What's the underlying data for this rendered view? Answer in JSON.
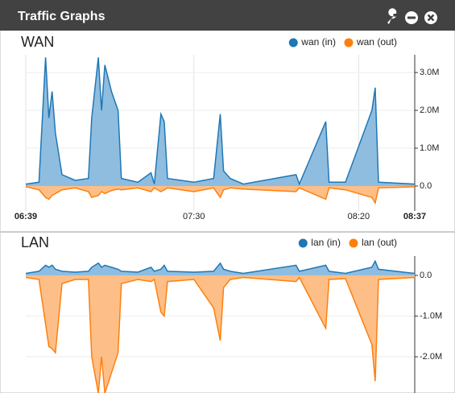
{
  "header": {
    "title": "Traffic Graphs"
  },
  "chart_data": [
    {
      "type": "area",
      "title": "WAN",
      "x": [
        "06:39",
        "06:43",
        "06:45",
        "06:46",
        "06:47",
        "06:48",
        "06:50",
        "06:54",
        "06:58",
        "06:59",
        "07:01",
        "07:02",
        "07:03",
        "07:05",
        "07:07",
        "07:08",
        "07:13",
        "07:17",
        "07:18",
        "07:20",
        "07:21",
        "07:22",
        "07:30",
        "07:36",
        "07:38",
        "07:39",
        "07:41",
        "07:45",
        "08:01",
        "08:02",
        "08:10",
        "08:11",
        "08:16",
        "08:24",
        "08:25",
        "08:26",
        "08:37"
      ],
      "series": [
        {
          "name": "wan (in)",
          "color": "#1f77b4",
          "fill": "#8fbde0",
          "values": [
            50000,
            100000,
            3400000,
            1800000,
            2500000,
            1400000,
            300000,
            150000,
            200000,
            1800000,
            3400000,
            2000000,
            3200000,
            2500000,
            2000000,
            200000,
            100000,
            350000,
            50000,
            1900000,
            1700000,
            200000,
            100000,
            200000,
            1900000,
            400000,
            200000,
            50000,
            300000,
            50000,
            1700000,
            100000,
            100000,
            2000000,
            2600000,
            100000,
            50000
          ]
        },
        {
          "name": "wan (out)",
          "color": "#ff7f0e",
          "fill": "#fdbf87",
          "values": [
            -20000,
            -100000,
            -300000,
            -350000,
            -250000,
            -200000,
            -100000,
            -50000,
            -150000,
            -300000,
            -250000,
            -150000,
            -200000,
            -120000,
            -80000,
            -100000,
            -50000,
            -150000,
            -50000,
            -150000,
            -100000,
            -50000,
            -150000,
            -50000,
            -300000,
            -100000,
            -50000,
            -80000,
            -150000,
            -50000,
            -350000,
            -50000,
            -100000,
            -300000,
            -450000,
            -50000,
            -20000
          ]
        }
      ],
      "xlim": [
        "06:39",
        "08:37"
      ],
      "xticks": [
        "06:39",
        "07:30",
        "08:20",
        "08:37"
      ],
      "ylim": [
        -660000,
        3470000
      ],
      "yticks": [
        {
          "value": 0,
          "label": "0.0"
        },
        {
          "value": 1000000,
          "label": "1.0M"
        },
        {
          "value": 2000000,
          "label": "2.0M"
        },
        {
          "value": 3000000,
          "label": "3.0M"
        }
      ],
      "grid": true,
      "legend": "top-right"
    },
    {
      "type": "area",
      "title": "LAN",
      "x": [
        "06:39",
        "06:43",
        "06:45",
        "06:46",
        "06:47",
        "06:48",
        "06:50",
        "06:54",
        "06:58",
        "06:59",
        "07:01",
        "07:02",
        "07:03",
        "07:05",
        "07:07",
        "07:08",
        "07:13",
        "07:17",
        "07:18",
        "07:20",
        "07:21",
        "07:22",
        "07:30",
        "07:36",
        "07:38",
        "07:39",
        "07:41",
        "07:45",
        "08:01",
        "08:02",
        "08:10",
        "08:11",
        "08:16",
        "08:24",
        "08:25",
        "08:26",
        "08:37"
      ],
      "series": [
        {
          "name": "lan (in)",
          "color": "#1f77b4",
          "fill": "#8fbde0",
          "values": [
            50000,
            100000,
            250000,
            200000,
            250000,
            150000,
            100000,
            80000,
            100000,
            200000,
            300000,
            200000,
            250000,
            200000,
            150000,
            100000,
            80000,
            200000,
            100000,
            150000,
            250000,
            100000,
            80000,
            100000,
            300000,
            150000,
            100000,
            50000,
            250000,
            100000,
            250000,
            100000,
            50000,
            200000,
            350000,
            150000,
            50000
          ]
        },
        {
          "name": "lan (out)",
          "color": "#ff7f0e",
          "fill": "#fdbf87",
          "values": [
            -50000,
            -100000,
            -1200000,
            -1750000,
            -1800000,
            -1900000,
            -200000,
            -100000,
            -100000,
            -2000000,
            -2900000,
            -2000000,
            -2900000,
            -2400000,
            -1900000,
            -200000,
            -100000,
            -150000,
            -100000,
            -900000,
            -1000000,
            -150000,
            -100000,
            -800000,
            -1600000,
            -300000,
            -100000,
            -50000,
            -150000,
            -50000,
            -1300000,
            -100000,
            -80000,
            -1700000,
            -2600000,
            -100000,
            -50000
          ]
        }
      ],
      "xlim": [
        "06:39",
        "08:37"
      ],
      "ylim": [
        -2890000,
        475000
      ],
      "yticks": [
        {
          "value": 0,
          "label": "0.0"
        },
        {
          "value": -1000000,
          "label": "-1.0M"
        },
        {
          "value": -2000000,
          "label": "-2.0M"
        }
      ],
      "grid": true,
      "legend": "top-right"
    }
  ]
}
